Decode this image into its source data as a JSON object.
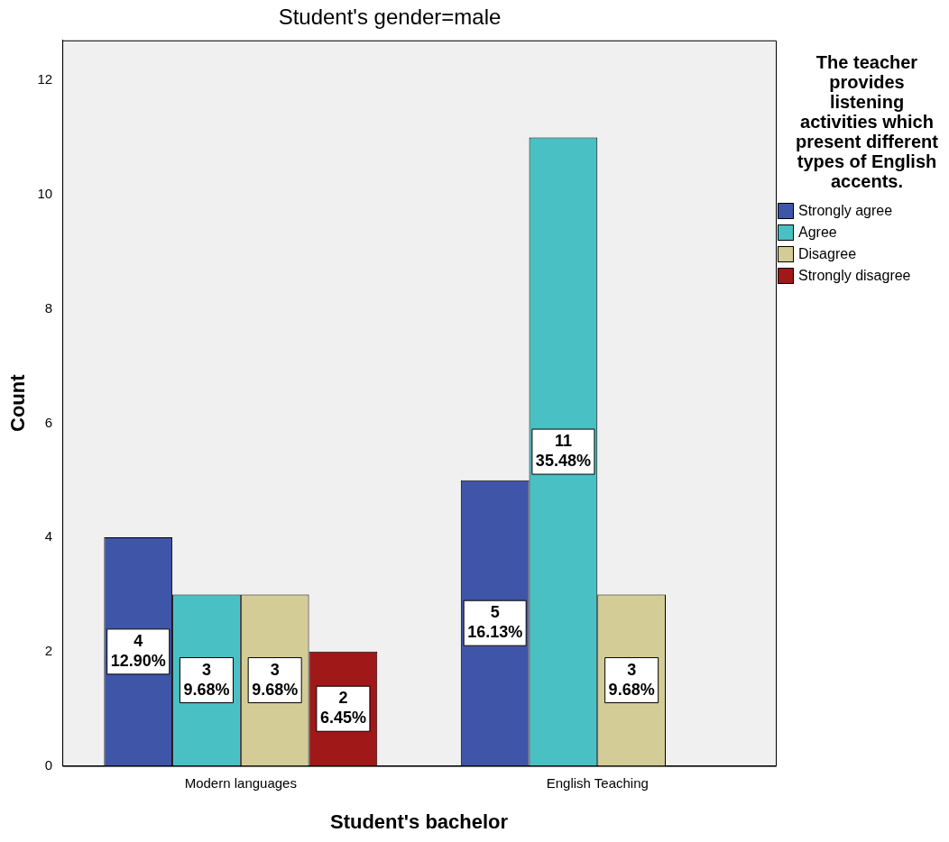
{
  "chart_data": {
    "type": "bar",
    "title": "Student's gender=male",
    "xlabel": "Student's bachelor",
    "ylabel": "Count",
    "legend_title": "The teacher provides listening activities which present different types of English accents.",
    "categories": [
      "Modern languages",
      "English Teaching"
    ],
    "series": [
      {
        "name": "Strongly agree",
        "color": "#3f55a8",
        "values": [
          4,
          5
        ],
        "value_labels": [
          "4\n12.90%",
          "5\n16.13%"
        ]
      },
      {
        "name": "Agree",
        "color": "#48c0c4",
        "values": [
          3,
          11
        ],
        "value_labels": [
          "3\n9.68%",
          "11\n35.48%"
        ]
      },
      {
        "name": "Disagree",
        "color": "#d4cc96",
        "values": [
          3,
          3
        ],
        "value_labels": [
          "3\n9.68%",
          "3\n9.68%"
        ]
      },
      {
        "name": "Strongly disagree",
        "color": "#a01818",
        "values": [
          2,
          null
        ],
        "value_labels": [
          "2\n6.45%",
          null
        ]
      }
    ],
    "ylim": [
      0,
      12.7
    ],
    "yticks": [
      0,
      2,
      4,
      6,
      8,
      10,
      12
    ],
    "grid": false,
    "legend": "right"
  }
}
